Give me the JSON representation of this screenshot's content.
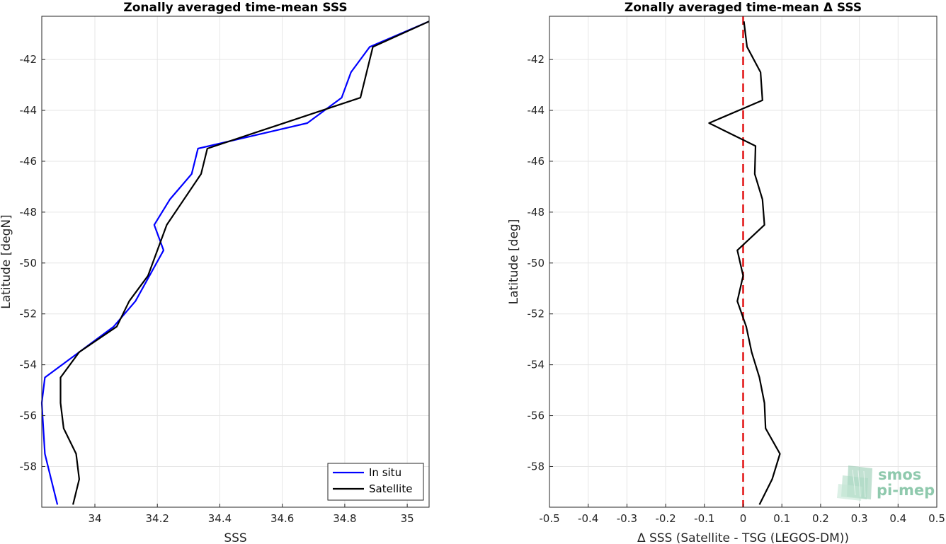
{
  "chart_data": [
    {
      "type": "line",
      "title": "Zonally averaged time-mean SSS",
      "xlabel": "SSS",
      "ylabel": "Latitude [degN]",
      "xlim": [
        33.83,
        35.07
      ],
      "ylim": [
        -59.6,
        -40.3
      ],
      "xticks": [
        "34",
        "34.2",
        "34.4",
        "34.6",
        "34.8",
        "35"
      ],
      "yticks": [
        "-42",
        "-44",
        "-46",
        "-48",
        "-50",
        "-52",
        "-54",
        "-56",
        "-58"
      ],
      "grid": true,
      "legend": "bottom-right",
      "series": [
        {
          "name": "In situ",
          "color": "#0000ff",
          "x": [
            35.07,
            34.88,
            34.82,
            34.79,
            34.68,
            34.33,
            34.31,
            34.24,
            34.19,
            34.22,
            34.13,
            34.06,
            33.95,
            33.84,
            33.83,
            33.84,
            33.86,
            33.88
          ],
          "y": [
            -40.5,
            -41.5,
            -42.5,
            -43.5,
            -44.5,
            -45.5,
            -46.5,
            -47.5,
            -48.5,
            -49.5,
            -51.5,
            -52.5,
            -53.5,
            -54.5,
            -55.5,
            -57.5,
            -58.5,
            -59.5
          ]
        },
        {
          "name": "Satellite",
          "color": "#000000",
          "x": [
            35.07,
            34.89,
            34.87,
            34.85,
            34.36,
            34.34,
            34.23,
            34.17,
            34.11,
            34.07,
            33.95,
            33.89,
            33.89,
            33.9,
            33.94,
            33.95,
            33.93
          ],
          "y": [
            -40.5,
            -41.5,
            -42.5,
            -43.5,
            -45.5,
            -46.5,
            -48.5,
            -50.5,
            -51.5,
            -52.5,
            -53.5,
            -54.5,
            -55.5,
            -56.5,
            -57.5,
            -58.5,
            -59.5
          ]
        }
      ]
    },
    {
      "type": "line",
      "title": "Zonally averaged time-mean Δ SSS",
      "xlabel": "Δ SSS (Satellite - TSG (LEGOS-DM))",
      "ylabel": "Latitude [deg]",
      "xlim": [
        -0.5,
        0.5
      ],
      "ylim": [
        -59.6,
        -40.3
      ],
      "xticks": [
        "-0.5",
        "-0.4",
        "-0.3",
        "-0.2",
        "-0.1",
        "0",
        "0.1",
        "0.2",
        "0.3",
        "0.4",
        "0.5"
      ],
      "yticks": [
        "-42",
        "-44",
        "-46",
        "-48",
        "-50",
        "-52",
        "-54",
        "-56",
        "-58"
      ],
      "grid": true,
      "reference_line": {
        "x": 0,
        "color": "#e31a1c",
        "style": "dashed"
      },
      "series": [
        {
          "color": "#000000",
          "x": [
            0.002,
            0.01,
            0.045,
            0.05,
            -0.088,
            0.032,
            0.03,
            0.05,
            0.055,
            -0.015,
            0.0,
            -0.015,
            0.008,
            0.022,
            0.042,
            0.055,
            0.058,
            0.095,
            0.075,
            0.042
          ],
          "y": [
            -40.5,
            -41.5,
            -42.5,
            -43.6,
            -44.5,
            -45.4,
            -46.5,
            -47.5,
            -48.5,
            -49.5,
            -50.5,
            -51.5,
            -52.5,
            -53.5,
            -54.5,
            -55.5,
            -56.5,
            -57.5,
            -58.5,
            -59.5
          ]
        }
      ]
    }
  ],
  "logo": {
    "line1": "smos",
    "line2": "pi-mep"
  }
}
